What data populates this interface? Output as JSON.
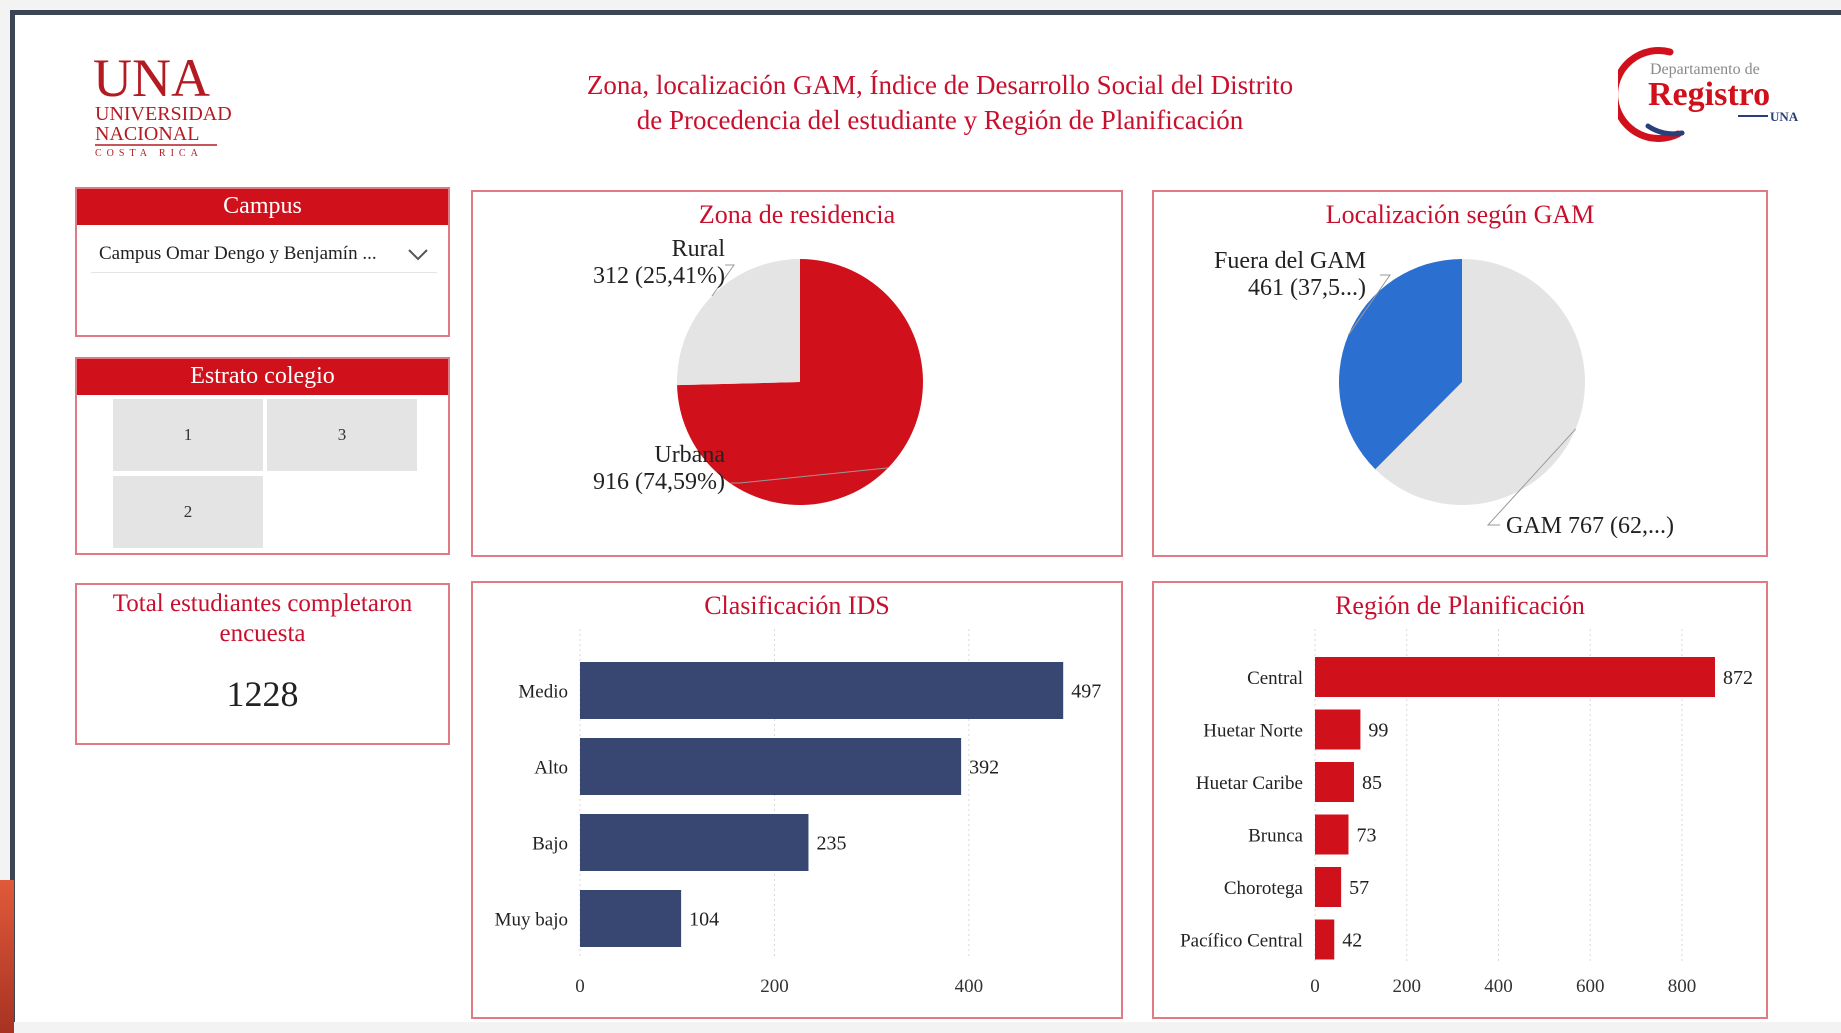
{
  "header": {
    "title_line1": "Zona, localización GAM, Índice de Desarrollo Social del Distrito",
    "title_line2": "de Procedencia del estudiante y Región de Planificación",
    "una_logo": {
      "main": "UNA",
      "line2": "UNIVERSIDAD",
      "line3": "NACIONAL",
      "line4": "COSTA RICA"
    },
    "registro_logo": {
      "top": "Departamento de",
      "main": "Registro",
      "sub": "UNA"
    }
  },
  "slicers": {
    "campus": {
      "title": "Campus",
      "selected": "Campus Omar Dengo y Benjamín ..."
    },
    "estrato": {
      "title": "Estrato colegio",
      "tiles": [
        "1",
        "3",
        "2"
      ]
    }
  },
  "card": {
    "title_line1": "Total estudiantes completaron",
    "title_line2": "encuesta",
    "value": "1228"
  },
  "colors": {
    "accent": "#d0111b",
    "navy": "#374771",
    "blue": "#2b6fd1",
    "grey": "#e4e4e4",
    "title_red": "#c8102e"
  },
  "chart_data": [
    {
      "type": "pie",
      "title": "Zona de residencia",
      "slices": [
        {
          "name": "Urbana",
          "value": 916,
          "label": "916 (74,59%)",
          "color": "#d0111b"
        },
        {
          "name": "Rural",
          "value": 312,
          "label": "312 (25,41%)",
          "color": "#e4e4e4"
        }
      ]
    },
    {
      "type": "pie",
      "title": "Localización según GAM",
      "slices": [
        {
          "name": "GAM",
          "value": 767,
          "label": "GAM 767 (62,...)",
          "color": "#e4e4e4"
        },
        {
          "name": "Fuera del GAM",
          "value": 461,
          "label": "461 (37,5...)",
          "color": "#2b6fd1"
        }
      ]
    },
    {
      "type": "bar",
      "orientation": "horizontal",
      "title": "Clasificación IDS",
      "categories": [
        "Medio",
        "Alto",
        "Bajo",
        "Muy bajo"
      ],
      "values": [
        497,
        392,
        235,
        104
      ],
      "xlim": [
        0,
        540
      ],
      "xticks": [
        0,
        200,
        400
      ],
      "color": "#374771"
    },
    {
      "type": "bar",
      "orientation": "horizontal",
      "title": "Región de Planificación",
      "categories": [
        "Central",
        "Huetar Norte",
        "Huetar Caribe",
        "Brunca",
        "Chorotega",
        "Pacífico Central"
      ],
      "values": [
        872,
        99,
        85,
        73,
        57,
        42
      ],
      "xlim": [
        0,
        920
      ],
      "xticks": [
        0,
        200,
        400,
        600,
        800
      ],
      "color": "#d0111b"
    }
  ]
}
